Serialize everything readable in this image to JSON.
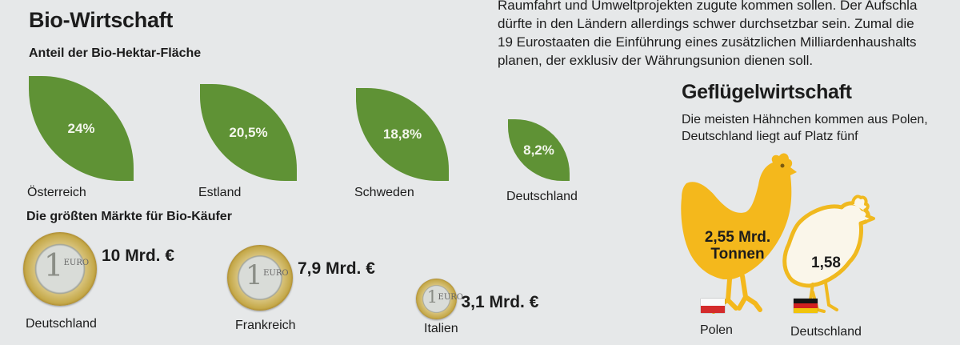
{
  "article_lines": [
    "Raumfahrt und Umweltprojekten zugute kommen sollen. Der Aufschla",
    "dürfte in den Ländern allerdings schwer durchsetzbar sein. Zumal die",
    "19 Eurostaaten die Einführung eines zusätzlichen Milliardenhaushalts",
    "planen, der exklusiv der Währungsunion dienen soll."
  ],
  "bio": {
    "title": "Bio-Wirtschaft",
    "share_subtitle": "Anteil der Bio-Hektar-Fläche",
    "markets_subtitle": "Die größten Märkte für Bio-Käufer"
  },
  "poultry": {
    "title": "Geflügelwirtschaft",
    "subtitle_lines": [
      "Die meisten Hähnchen kommen aus Polen,",
      "Deutschland liegt auf Platz fünf"
    ]
  },
  "colors": {
    "leaf_green": "#5f9235",
    "chicken_poland": "#f4b81c",
    "chicken_germany_outline": "#f0b91f",
    "chicken_germany_fill": "#faf6ea"
  },
  "chart_data": [
    {
      "type": "bar",
      "title": "Anteil der Bio-Hektar-Fläche",
      "categories": [
        "Österreich",
        "Estland",
        "Schweden",
        "Deutschland"
      ],
      "values": [
        24,
        20.5,
        18.8,
        8.2
      ],
      "value_labels": [
        "24%",
        "20,5%",
        "18,8%",
        "8,2%"
      ],
      "unit": "%",
      "mark": "leaf-shaped squares sized by value"
    },
    {
      "type": "bar",
      "title": "Die größten Märkte für Bio-Käufer",
      "categories": [
        "Deutschland",
        "Frankreich",
        "Italien"
      ],
      "values": [
        10,
        7.9,
        3.1
      ],
      "value_labels": [
        "10 Mrd. €",
        "7,9 Mrd. €",
        "3,1 Mrd. €"
      ],
      "unit": "Mrd. €",
      "mark": "euro coins sized by value",
      "coin_text": "EURO"
    },
    {
      "type": "bar",
      "title": "Geflügelwirtschaft",
      "categories": [
        "Polen",
        "Deutschland"
      ],
      "values": [
        2.55,
        1.58
      ],
      "value_labels": [
        "2,55 Mrd. Tonnen",
        "1,58"
      ],
      "unit": "Mrd. Tonnen",
      "mark": "chicken silhouettes sized by value"
    }
  ]
}
